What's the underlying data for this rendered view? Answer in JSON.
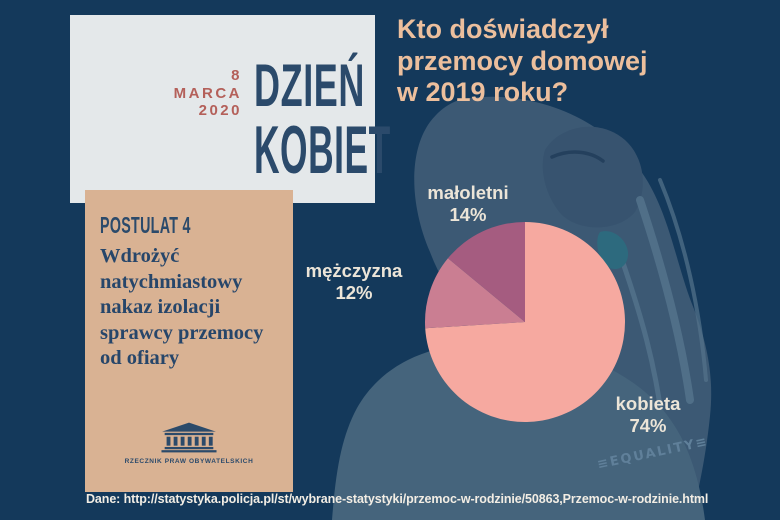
{
  "page": {
    "background": "#14395b"
  },
  "header_card": {
    "background": "#e4e8ea",
    "date": {
      "line1": "8",
      "line2": "MARCA",
      "line3": "2020",
      "color": "#b4605a"
    },
    "title": {
      "line1": "DZIEŃ",
      "line2": "KOBIET",
      "color": "#2b4a6b"
    }
  },
  "question": {
    "lines": [
      "Kto doświadczył",
      "przemocy domowej",
      "w 2019 roku?"
    ],
    "color": "#ecbf9d"
  },
  "postulat_card": {
    "background": "#d9b293",
    "label": "POSTULAT 4",
    "lines": [
      "Wdrożyć",
      "natychmiastowy",
      "nakaz izolacji",
      "sprawcy przemocy",
      "od ofiary"
    ],
    "logo_caption": "RZECZNIK PRAW OBYWATELSKICH",
    "text_color": "#2b4a6b"
  },
  "chart_data": {
    "type": "pie",
    "title": "Kto doświadczył przemocy domowej w 2019 roku?",
    "categories": [
      "kobieta",
      "mężczyzna",
      "małoletni"
    ],
    "values": [
      74,
      12,
      14
    ],
    "unit": "%",
    "slice_colors": [
      "#f6a9a0",
      "#ca7e92",
      "#a55c80"
    ],
    "start_angle_deg": 0,
    "direction": "clockwise",
    "legend_position": "labels-around-pie",
    "labels": [
      {
        "name": "małoletni",
        "value": "14%"
      },
      {
        "name": "mężczyzna",
        "value": "12%"
      },
      {
        "name": "kobieta",
        "value": "74%"
      }
    ],
    "label_color": "#ece5d8"
  },
  "decor": {
    "equality_text": "≡EQUALITY≡"
  },
  "source": {
    "text": "Dane: http://statystyka.policja.pl/st/wybrane-statystyki/przemoc-w-rodzinie/50863,Przemoc-w-rodzinie.html",
    "color": "#f2ede4"
  }
}
